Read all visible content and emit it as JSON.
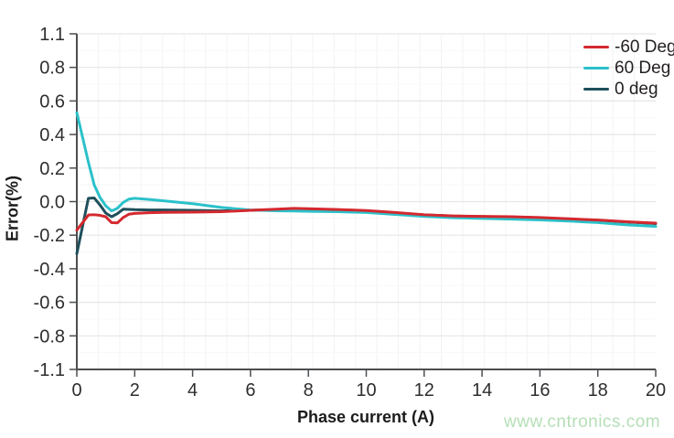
{
  "watermark": {
    "text": "www.cntronics.com",
    "color": "#b5dfb7"
  },
  "colors": {
    "axis": "#4d4e50",
    "grid_major": "#e5e6e7",
    "grid_minor": "#f2f3f3",
    "tick_text": "#2e2e2e"
  },
  "chart_data": {
    "type": "line",
    "title": "",
    "xlabel": "Phase current (A)",
    "ylabel": "Error(%)",
    "x_range": [
      0,
      20
    ],
    "x_ticks": [
      "0",
      "2",
      "4",
      "6",
      "8",
      "10",
      "12",
      "14",
      "16",
      "18",
      "20"
    ],
    "y_ticks": [
      "1.1",
      "0.8",
      "0.6",
      "0.4",
      "0.2",
      "0.0",
      "-0.2",
      "-0.4",
      "-0.6",
      "-0.8",
      "-1.1"
    ],
    "y_axis_note": "tick labels equally spaced (category-style value axis)",
    "grid": "horizontal major gridlines light gray, very faint vertical minors",
    "legend_position": "top-right",
    "x": [
      0,
      0.4,
      0.6,
      0.8,
      1,
      1.2,
      1.4,
      1.6,
      1.8,
      2,
      2.5,
      3,
      4,
      5,
      6,
      7,
      7.5,
      8,
      9,
      10,
      11,
      12,
      13,
      14,
      15,
      16,
      17,
      18,
      19,
      20
    ],
    "series": [
      {
        "name": "-60 Deg",
        "color": "#d4292f",
        "values": [
          -0.17,
          -0.08,
          -0.078,
          -0.082,
          -0.09,
          -0.125,
          -0.127,
          -0.095,
          -0.075,
          -0.07,
          -0.066,
          -0.064,
          -0.063,
          -0.06,
          -0.052,
          -0.044,
          -0.04,
          -0.042,
          -0.047,
          -0.053,
          -0.065,
          -0.078,
          -0.085,
          -0.088,
          -0.09,
          -0.095,
          -0.102,
          -0.11,
          -0.12,
          -0.128
        ]
      },
      {
        "name": "60 Deg",
        "color": "#2bc1ca",
        "values": [
          0.53,
          0.235,
          0.1,
          0.025,
          -0.025,
          -0.055,
          -0.04,
          -0.005,
          0.015,
          0.02,
          0.013,
          0.005,
          -0.012,
          -0.035,
          -0.05,
          -0.055,
          -0.056,
          -0.058,
          -0.06,
          -0.065,
          -0.076,
          -0.088,
          -0.096,
          -0.1,
          -0.104,
          -0.109,
          -0.116,
          -0.125,
          -0.138,
          -0.148
        ]
      },
      {
        "name": "0 deg",
        "color": "#1e4f5b",
        "values": [
          -0.31,
          0.02,
          0.022,
          -0.02,
          -0.068,
          -0.09,
          -0.072,
          -0.045,
          -0.046,
          -0.048,
          -0.05,
          -0.05,
          -0.052,
          -0.055,
          -0.052,
          -0.047,
          -0.045,
          -0.046,
          -0.05,
          -0.056,
          -0.067,
          -0.079,
          -0.086,
          -0.089,
          -0.091,
          -0.097,
          -0.104,
          -0.111,
          -0.121,
          -0.131
        ]
      }
    ]
  }
}
